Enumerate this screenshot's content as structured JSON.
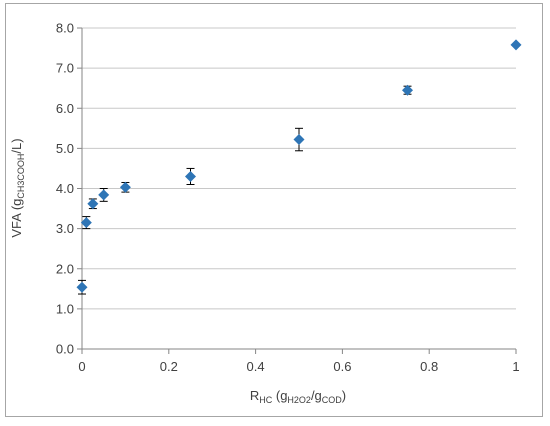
{
  "chart_data": {
    "type": "scatter",
    "xlim": [
      0,
      1
    ],
    "ylim": [
      0,
      8
    ],
    "x_ticks": [
      "0",
      "0.2",
      "0.4",
      "0.6",
      "0.8",
      "1"
    ],
    "y_ticks": [
      "0.0",
      "1.0",
      "2.0",
      "3.0",
      "4.0",
      "5.0",
      "6.0",
      "7.0",
      "8.0"
    ],
    "xlabel": {
      "main": "R",
      "sub1": "HC",
      "mid": " (g",
      "sub2": "H2O2",
      "mid2": "/g",
      "sub3": "COD",
      "end": ")"
    },
    "ylabel": {
      "main": "VFA (g",
      "sub": "CH3COOH",
      "end": "/L)"
    },
    "grid": "horizontal",
    "marker_color": "#2e75b6",
    "points": [
      {
        "x": 0.0,
        "y": 1.54,
        "err": 0.17
      },
      {
        "x": 0.01,
        "y": 3.15,
        "err": 0.15
      },
      {
        "x": 0.025,
        "y": 3.62,
        "err": 0.12
      },
      {
        "x": 0.05,
        "y": 3.84,
        "err": 0.16
      },
      {
        "x": 0.1,
        "y": 4.03,
        "err": 0.12
      },
      {
        "x": 0.25,
        "y": 4.3,
        "err": 0.2
      },
      {
        "x": 0.5,
        "y": 5.22,
        "err": 0.28
      },
      {
        "x": 0.75,
        "y": 6.45,
        "err": 0.1
      },
      {
        "x": 1.0,
        "y": 7.58,
        "err": 0.0
      }
    ]
  }
}
